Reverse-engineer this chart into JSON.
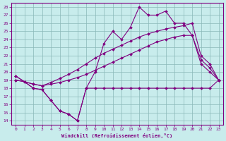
{
  "xlabel": "Windchill (Refroidissement éolien,°C)",
  "xlim": [
    -0.5,
    23.5
  ],
  "ylim": [
    13.5,
    28.5
  ],
  "xticks": [
    0,
    1,
    2,
    3,
    4,
    5,
    6,
    7,
    8,
    9,
    10,
    11,
    12,
    13,
    14,
    15,
    16,
    17,
    18,
    19,
    20,
    21,
    22,
    23
  ],
  "yticks": [
    14,
    15,
    16,
    17,
    18,
    19,
    20,
    21,
    22,
    23,
    24,
    25,
    26,
    27,
    28
  ],
  "background_color": "#c8ecec",
  "grid_color": "#8ab8b8",
  "line_color": "#800080",
  "line1_x": [
    0,
    1,
    2,
    3,
    4,
    5,
    6,
    7,
    8,
    9,
    10,
    11,
    12,
    13,
    14,
    15,
    16,
    17,
    18,
    19,
    20,
    21,
    22,
    23
  ],
  "line1_y": [
    19.5,
    18.8,
    18.0,
    17.8,
    16.5,
    15.2,
    14.8,
    14.0,
    18.0,
    18.0,
    18.0,
    18.0,
    18.0,
    18.0,
    18.0,
    18.0,
    18.0,
    18.0,
    18.0,
    18.0,
    18.0,
    18.0,
    18.0,
    19.0
  ],
  "line2_x": [
    0,
    1,
    2,
    3,
    4,
    5,
    6,
    7,
    8,
    9,
    10,
    11,
    12,
    13,
    14,
    15,
    16,
    17,
    18,
    19,
    20,
    21,
    22,
    23
  ],
  "line2_y": [
    19.0,
    18.8,
    18.5,
    18.3,
    18.5,
    18.7,
    19.0,
    19.3,
    19.7,
    20.2,
    20.7,
    21.2,
    21.7,
    22.2,
    22.7,
    23.2,
    23.7,
    24.0,
    24.3,
    24.5,
    24.5,
    21.5,
    20.5,
    19.0
  ],
  "line3_x": [
    0,
    1,
    2,
    3,
    4,
    5,
    6,
    7,
    8,
    9,
    10,
    11,
    12,
    13,
    14,
    15,
    16,
    17,
    18,
    19,
    20,
    21,
    22,
    23
  ],
  "line3_y": [
    19.0,
    18.8,
    18.5,
    18.3,
    18.7,
    19.2,
    19.7,
    20.3,
    21.0,
    21.7,
    22.3,
    22.8,
    23.3,
    23.8,
    24.3,
    24.7,
    25.0,
    25.3,
    25.5,
    25.7,
    26.0,
    22.0,
    21.0,
    19.0
  ],
  "line4_x": [
    0,
    1,
    2,
    3,
    4,
    5,
    6,
    7,
    8,
    9,
    10,
    11,
    12,
    13,
    14,
    15,
    16,
    17,
    18,
    19,
    20,
    21,
    22,
    23
  ],
  "line4_y": [
    19.5,
    18.8,
    18.0,
    17.8,
    16.5,
    15.2,
    14.8,
    14.0,
    18.0,
    20.0,
    23.5,
    25.0,
    24.0,
    25.5,
    28.0,
    27.0,
    27.0,
    27.5,
    26.0,
    26.0,
    24.5,
    21.0,
    20.0,
    19.0
  ]
}
